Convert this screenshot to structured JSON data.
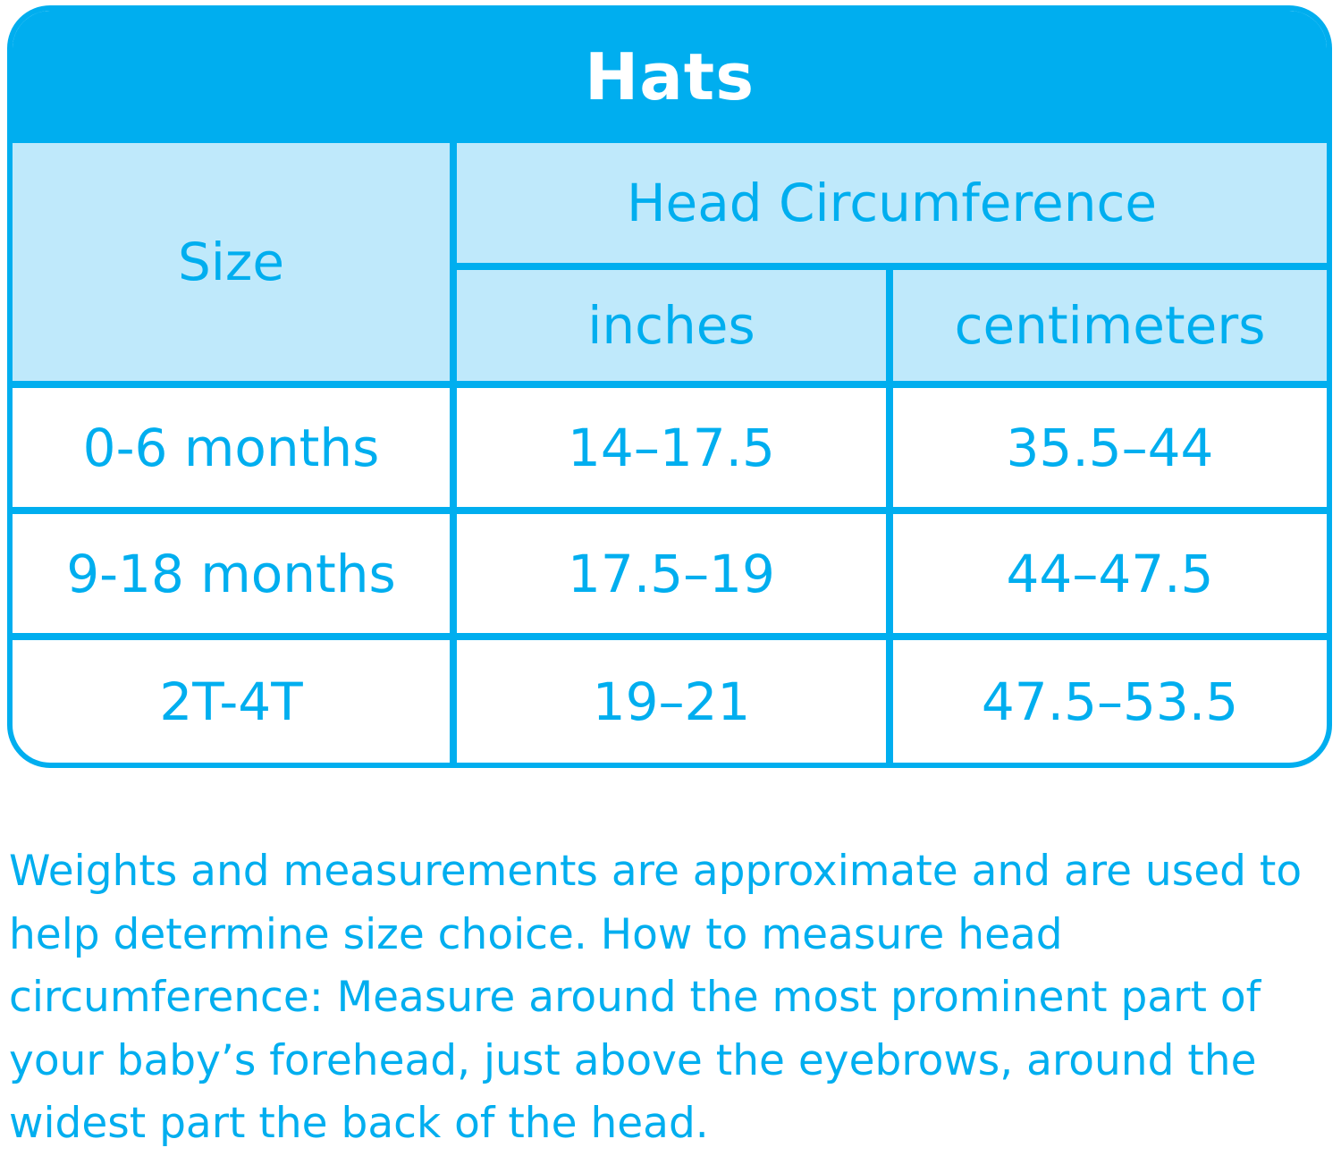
{
  "title": "Hats",
  "header": {
    "size_label": "Size",
    "group_label": "Head Circumference",
    "inches_label": "inches",
    "centimeters_label": "centimeters"
  },
  "rows": [
    {
      "size": "0-6 months",
      "inches": "14–17.5",
      "centimeters": "35.5–44"
    },
    {
      "size": "9-18 months",
      "inches": "17.5–19",
      "centimeters": "44–47.5"
    },
    {
      "size": "2T-4T",
      "inches": "19–21",
      "centimeters": "47.5–53.5"
    }
  ],
  "note": "Weights and measurements are approximate and are used to help determine size choice. How to measure head circumference: Measure around the most prominent part of your baby’s forehead, just above the eyebrows, around the widest part the back of the head.",
  "colors": {
    "accent": "#00aeef",
    "header_fill": "#bfe9fb",
    "background": "#ffffff"
  }
}
